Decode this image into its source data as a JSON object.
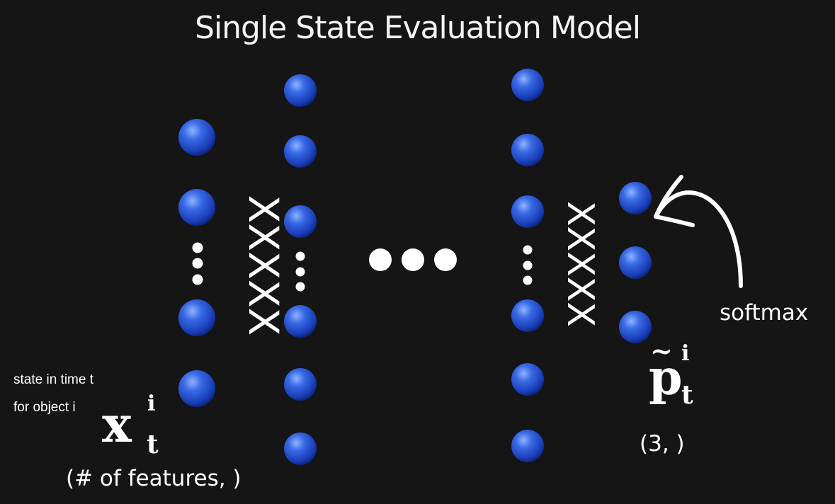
{
  "title": "Single State Evaluation Model",
  "connector_label": "XXXXX",
  "input_caption_line1": "state in time t",
  "input_caption_line2": "for object i",
  "input_symbol": "x",
  "input_sup": "i",
  "input_sub": "t",
  "input_shape": "(# of features, )",
  "output_symbol": "p",
  "output_tilde": "~",
  "output_sup": "i",
  "output_sub": "t",
  "output_shape": "(3, )",
  "softmax_label": "softmax",
  "colors": {
    "background": "#151515",
    "node_light": "#5f8ff0",
    "node_mid": "#1f4fd0",
    "node_dark": "#0b2585",
    "text": "#ffffff"
  }
}
